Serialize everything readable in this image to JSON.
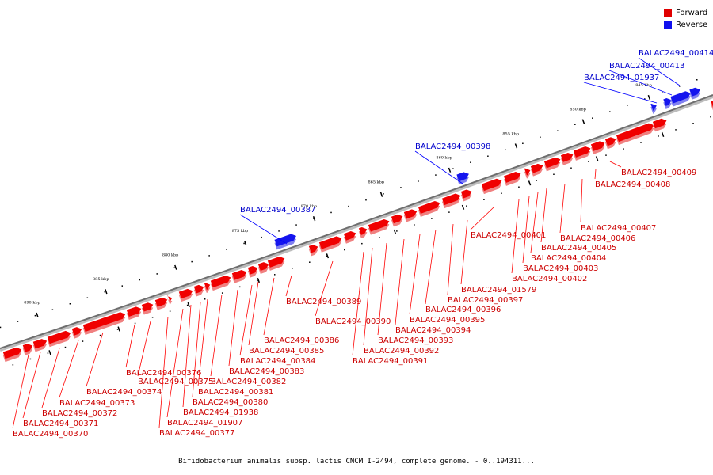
{
  "legend": {
    "forward_label": "Forward",
    "reverse_label": "Reverse",
    "forward_color": "#ff0000",
    "reverse_color": "#0000ff"
  },
  "caption": "Bifidobacterium animalis subsp. lactis CNCM I-2494, complete genome. - 0..194311...",
  "scale_ticks": [
    "890 kbp",
    "885 kbp",
    "880 kbp",
    "875 kbp",
    "870 kbp",
    "865 kbp",
    "860 kbp",
    "855 kbp",
    "850 kbp",
    "845 kbp"
  ],
  "reverse_genes": [
    "BALAC2494_00387",
    "BALAC2494_00398",
    "BALAC2494_01937",
    "BALAC2494_00413",
    "BALAC2494_00414"
  ],
  "forward_genes": [
    "BALAC2494_00370",
    "BALAC2494_00371",
    "BALAC2494_00372",
    "BALAC2494_00373",
    "BALAC2494_00374",
    "BALAC2494_00375",
    "BALAC2494_00376",
    "BALAC2494_00377",
    "BALAC2494_01907",
    "BALAC2494_01938",
    "BALAC2494_00380",
    "BALAC2494_00381",
    "BALAC2494_00382",
    "BALAC2494_00383",
    "BALAC2494_00384",
    "BALAC2494_00385",
    "BALAC2494_00386",
    "BALAC2494_00389",
    "BALAC2494_00390",
    "BALAC2494_00391",
    "BALAC2494_00392",
    "BALAC2494_00393",
    "BALAC2494_00394",
    "BALAC2494_00395",
    "BALAC2494_00396",
    "BALAC2494_00397",
    "BALAC2494_01579",
    "BALAC2494_00401",
    "BALAC2494_00402",
    "BALAC2494_00403",
    "BALAC2494_00404",
    "BALAC2494_00405",
    "BALAC2494_00406",
    "BALAC2494_00407",
    "BALAC2494_00408",
    "BALAC2494_00409"
  ]
}
